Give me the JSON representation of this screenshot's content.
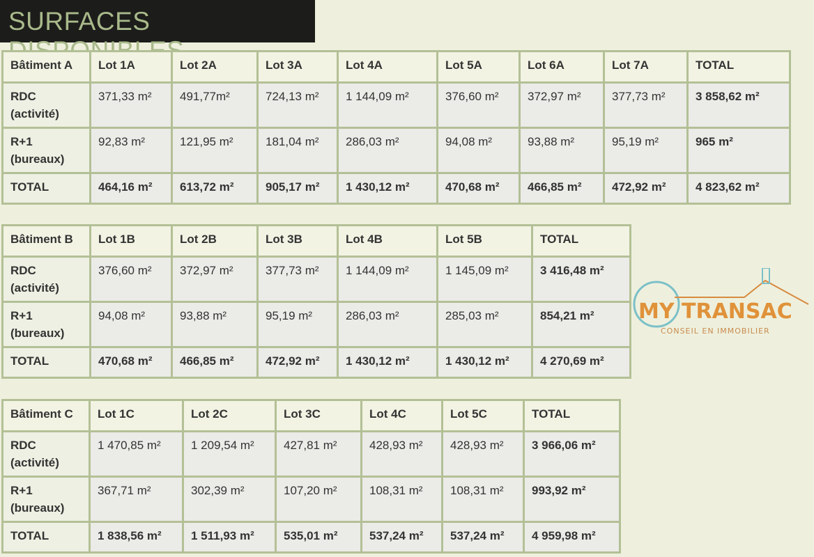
{
  "title": "SURFACES DISPONIBLES",
  "watermark": {
    "brand": "MY TRANSAC",
    "tagline": "CONSEIL EN IMMOBILIER",
    "colors": {
      "my": "#e0923a",
      "transac": "#7cc0c8"
    }
  },
  "tables": [
    {
      "headers": [
        "Bâtiment A",
        "Lot 1A",
        "Lot 2A",
        "Lot 3A",
        "Lot 4A",
        "Lot 5A",
        "Lot 6A",
        "Lot 7A",
        "TOTAL"
      ],
      "rows": [
        [
          "RDC (activité)",
          "371,33 m²",
          "491,77m²",
          "724,13 m²",
          "1 144,09 m²",
          "376,60 m²",
          "372,97 m²",
          "377,73 m²",
          "3 858,62 m²"
        ],
        [
          "R+1 (bureaux)",
          "92,83 m²",
          "121,95 m²",
          "181,04 m²",
          "286,03 m²",
          "94,08 m²",
          "93,88 m²",
          "95,19 m²",
          "965 m²"
        ],
        [
          "TOTAL",
          "464,16 m²",
          "613,72 m²",
          "905,17 m²",
          "1 430,12 m²",
          "470,68 m²",
          "466,85 m²",
          "472,92 m²",
          "4 823,62 m²"
        ]
      ]
    },
    {
      "headers": [
        "Bâtiment B",
        "Lot 1B",
        "Lot 2B",
        "Lot 3B",
        "Lot 4B",
        "Lot 5B",
        "TOTAL"
      ],
      "rows": [
        [
          "RDC (activité)",
          "376,60 m²",
          "372,97 m²",
          "377,73 m²",
          "1 144,09 m²",
          "1 145,09 m²",
          "3 416,48 m²"
        ],
        [
          "R+1 (bureaux)",
          "94,08 m²",
          "93,88 m²",
          "95,19 m²",
          "286,03 m²",
          "285,03 m²",
          "854,21 m²"
        ],
        [
          "TOTAL",
          "470,68 m²",
          "466,85 m²",
          "472,92 m²",
          "1 430,12 m²",
          "1 430,12 m²",
          "4 270,69 m²"
        ]
      ]
    },
    {
      "headers": [
        "Bâtiment C",
        "Lot 1C",
        "Lot 2C",
        "Lot 3C",
        "Lot 4C",
        "Lot 5C",
        "TOTAL"
      ],
      "rows": [
        [
          "RDC (activité)",
          "1 470,85 m²",
          "1 209,54 m²",
          "427,81 m²",
          "428,93 m²",
          "428,93 m²",
          "3 966,06 m²"
        ],
        [
          "R+1 (bureaux)",
          "367,71 m²",
          "302,39 m²",
          "107,20 m²",
          "108,31 m²",
          "108,31 m²",
          "993,92 m²"
        ],
        [
          "TOTAL",
          "1 838,56 m²",
          "1 511,93 m²",
          "535,01 m²",
          "537,24 m²",
          "537,24 m²",
          "4 959,98 m²"
        ]
      ]
    }
  ]
}
